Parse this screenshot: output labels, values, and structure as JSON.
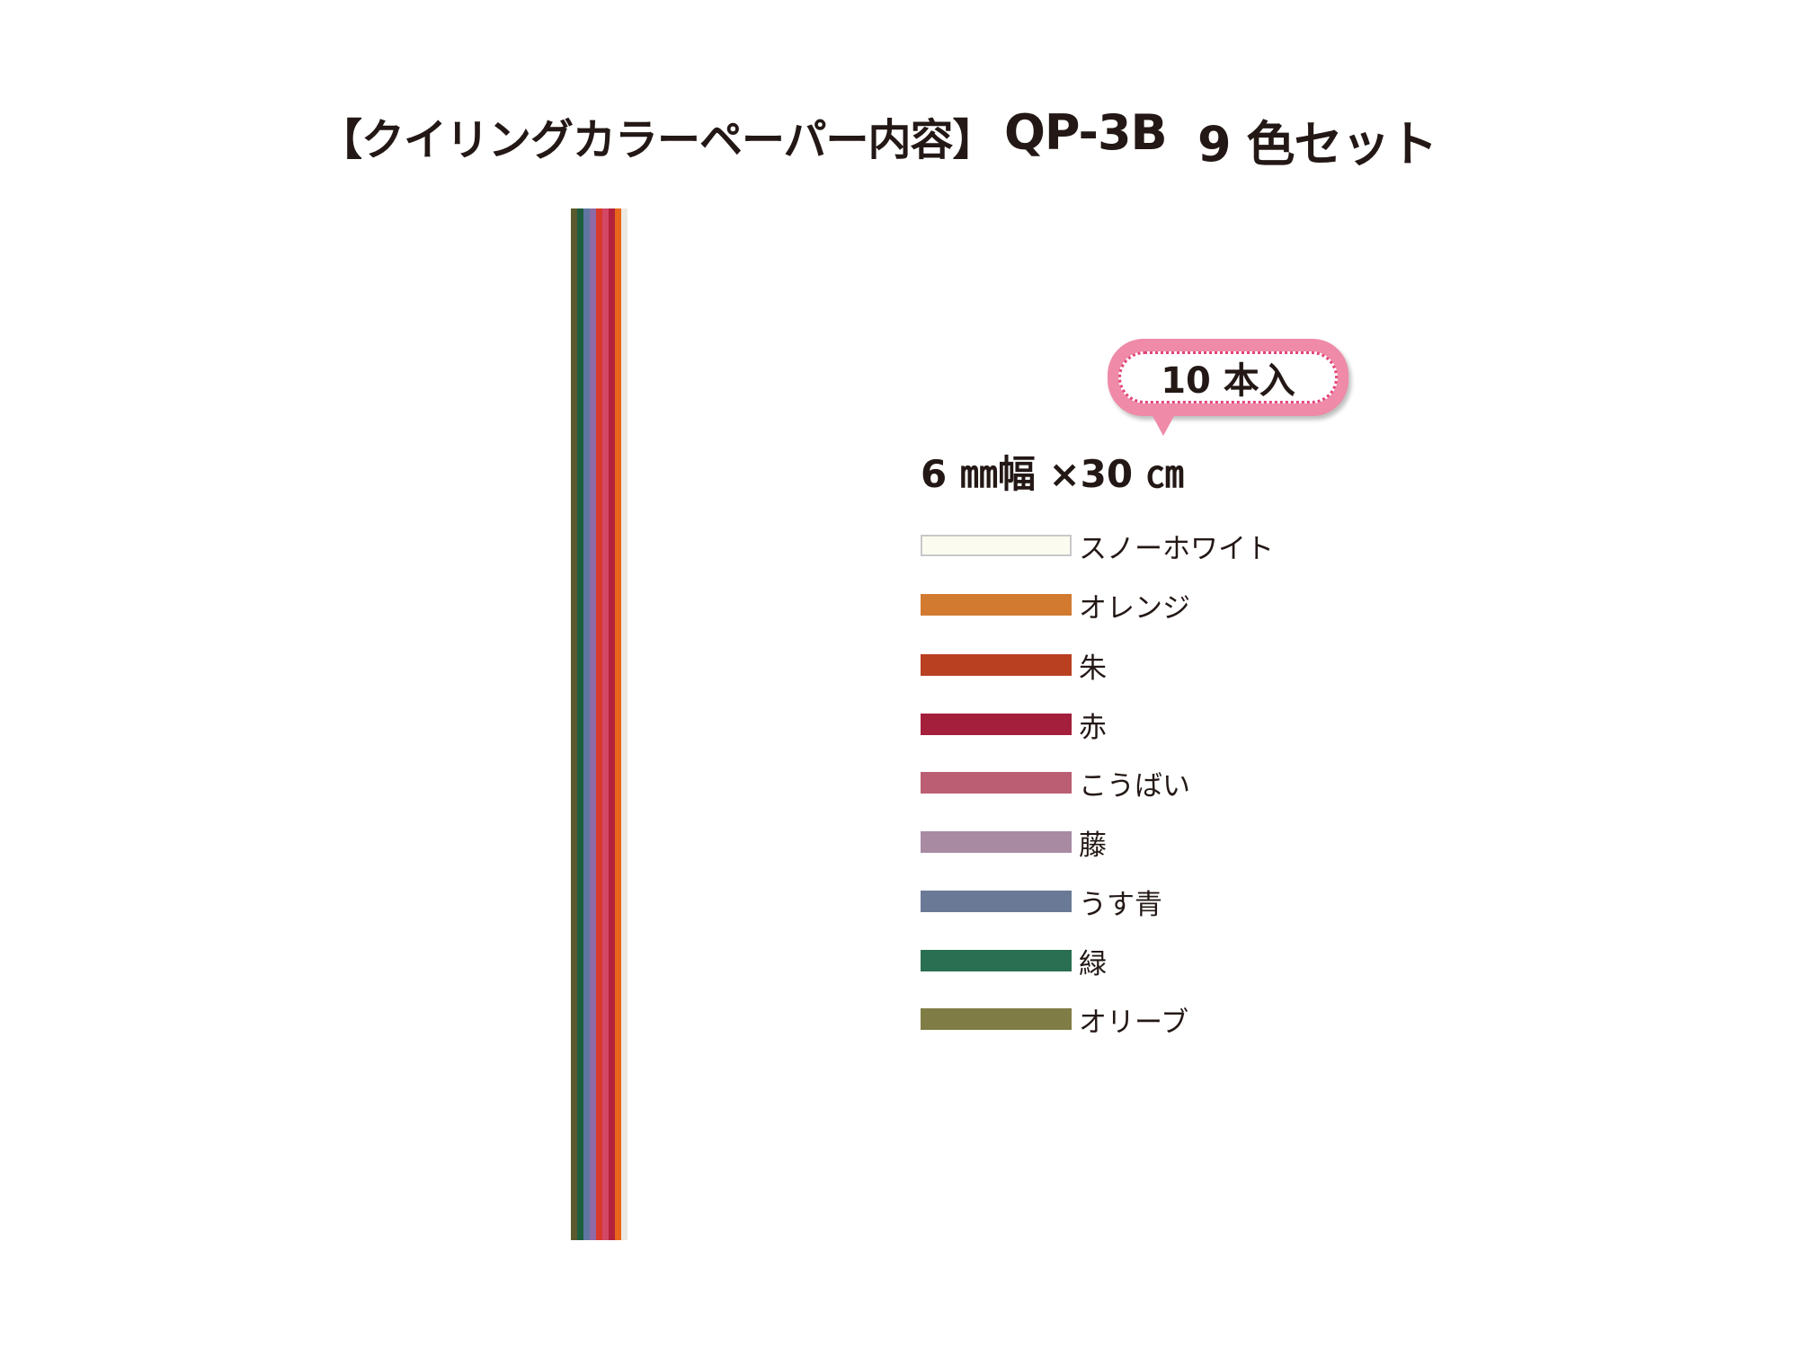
{
  "header": {
    "title": "【クイリングカラーペーパー内容】",
    "product_code": "QP-3B",
    "set_name": "9 色セット"
  },
  "badge": {
    "text": "10 本入",
    "color": "#ef8aa8"
  },
  "size": "6 ㎜幅 ×30 ㎝",
  "strip_colors": [
    "#5a5a2e",
    "#1e5e3e",
    "#5f76a0",
    "#8e6aa6",
    "#d8392a",
    "#d24865",
    "#b3213b",
    "#e8661c",
    "#ece9e2"
  ],
  "colors": [
    {
      "name": "スノーホワイト",
      "hex": "#fcfbf0"
    },
    {
      "name": "オレンジ",
      "hex": "#d27a30"
    },
    {
      "name": "朱",
      "hex": "#b94021"
    },
    {
      "name": "赤",
      "hex": "#a31f3b"
    },
    {
      "name": "こうばい",
      "hex": "#bb5d73"
    },
    {
      "name": "藤",
      "hex": "#a88ba3"
    },
    {
      "name": "うす青",
      "hex": "#6a7a96"
    },
    {
      "name": "緑",
      "hex": "#2a6f52"
    },
    {
      "name": "オリーブ",
      "hex": "#7f7d45"
    }
  ]
}
